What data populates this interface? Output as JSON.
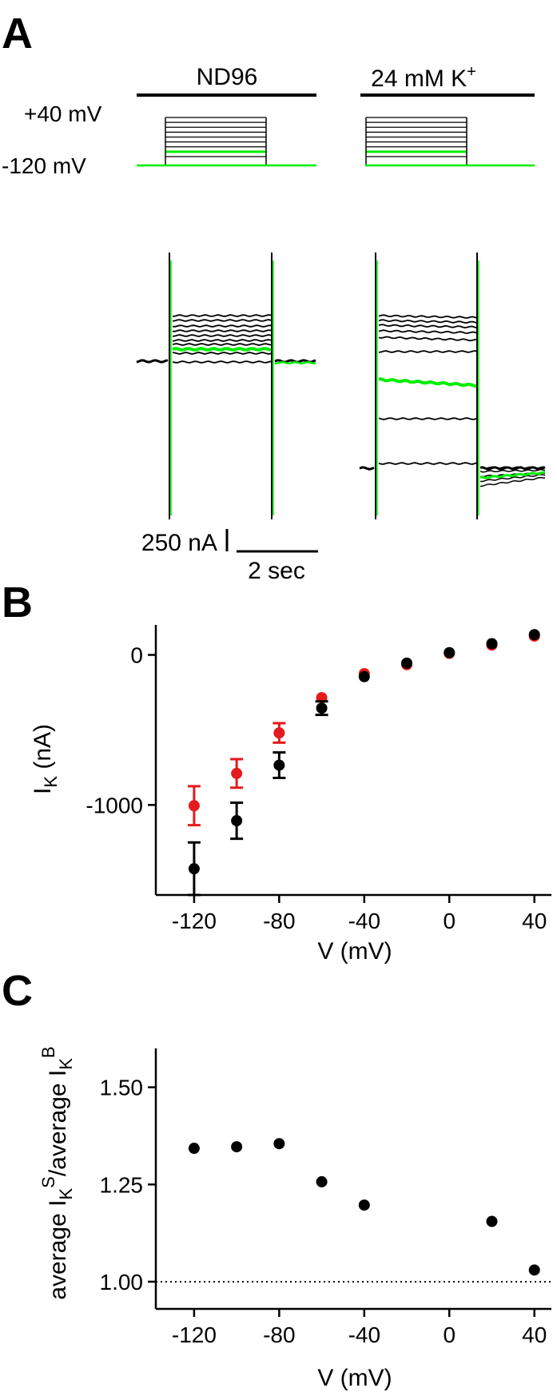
{
  "panels": {
    "a": {
      "letter": "A"
    },
    "b": {
      "letter": "B"
    },
    "c": {
      "letter": "C"
    }
  },
  "panel_a": {
    "conditions": [
      {
        "label_main": "ND96",
        "label_sup": ""
      },
      {
        "label_main": "24 mM K",
        "label_sup": "+"
      }
    ],
    "voltage_labels": {
      "top": "+40 mV",
      "bottom": "-120 mV"
    },
    "scale_bar": {
      "current": "250 nA",
      "time": "2 sec"
    },
    "highlight_color": "#00ee00",
    "trace_color": "#000000"
  },
  "chart_data": [
    {
      "type": "scatter",
      "panel": "B",
      "xlabel": "V (mV)",
      "ylabel": "I",
      "ylabel_sub": "K",
      "ylabel_unit": " (nA)",
      "xlim": [
        -138,
        48
      ],
      "ylim": [
        -1600,
        200
      ],
      "x_ticks": [
        -120,
        -80,
        -40,
        0,
        40
      ],
      "x_tick_labels": [
        "-120",
        "-80",
        "-40",
        "0",
        "40"
      ],
      "y_ticks": [
        0,
        -1000
      ],
      "y_tick_labels": [
        "0",
        "-1000"
      ],
      "series": [
        {
          "color": "#e41a1c",
          "x": [
            -120,
            -100,
            -80,
            -60,
            -40,
            -20,
            0,
            20,
            40
          ],
          "y": [
            -1005,
            -790,
            -520,
            -285,
            -125,
            -65,
            10,
            65,
            125
          ],
          "err": [
            130,
            95,
            65,
            0,
            0,
            0,
            0,
            0,
            0
          ]
        },
        {
          "color": "#000000",
          "x": [
            -120,
            -100,
            -80,
            -60,
            -40,
            -20,
            0,
            20,
            40
          ],
          "y": [
            -1425,
            -1105,
            -735,
            -355,
            -145,
            -55,
            15,
            75,
            135
          ],
          "err": [
            175,
            120,
            85,
            45,
            0,
            0,
            0,
            0,
            0
          ]
        }
      ]
    },
    {
      "type": "scatter",
      "panel": "C",
      "xlabel": "V (mV)",
      "ylabel_parts": [
        "average I",
        "K",
        "S",
        "/average I",
        "K",
        "B"
      ],
      "xlim": [
        -138,
        48
      ],
      "ylim": [
        0.93,
        1.6
      ],
      "x_ticks": [
        -120,
        -80,
        -40,
        0,
        40
      ],
      "x_tick_labels": [
        "-120",
        "-80",
        "-40",
        "0",
        "40"
      ],
      "y_ticks": [
        1.0,
        1.25,
        1.5
      ],
      "y_tick_labels": [
        "1.00",
        "1.25",
        "1.50"
      ],
      "reference_line": 1.0,
      "series": [
        {
          "color": "#000000",
          "x": [
            -120,
            -100,
            -80,
            -60,
            -40,
            20,
            40
          ],
          "y": [
            1.343,
            1.347,
            1.355,
            1.257,
            1.197,
            1.155,
            1.03
          ]
        }
      ]
    }
  ]
}
